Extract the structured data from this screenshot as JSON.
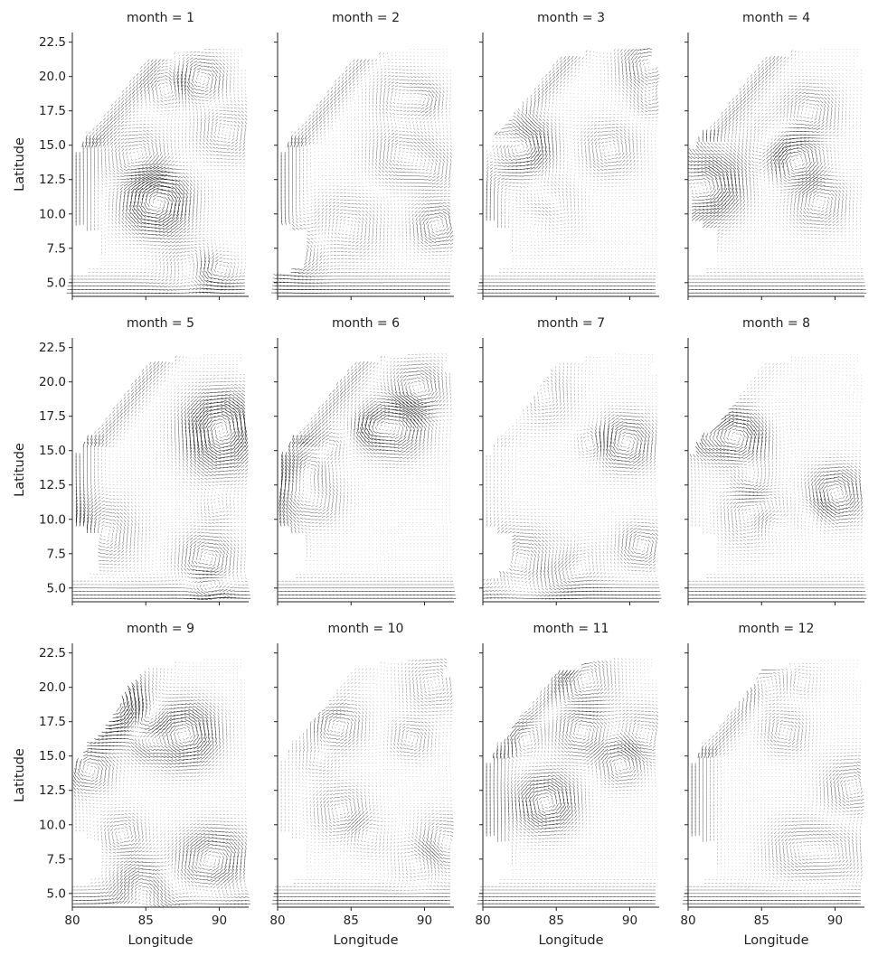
{
  "chart_data": {
    "type": "quiver",
    "layout": "facet-grid 3 rows x 4 columns, shared axes",
    "xlabel": "Longitude",
    "ylabel": "Latitude",
    "xlim": [
      80,
      92
    ],
    "ylim": [
      4,
      23.2
    ],
    "xticks": [
      80,
      85,
      90
    ],
    "xtick_labels": [
      "80",
      "85",
      "90"
    ],
    "yticks": [
      5.0,
      7.5,
      10.0,
      12.5,
      15.0,
      17.5,
      20.0,
      22.5
    ],
    "ytick_labels": [
      "5.0",
      "7.5",
      "10.0",
      "12.5",
      "15.0",
      "17.5",
      "20.0",
      "22.5"
    ],
    "grid": false,
    "arrow_color": "#111111",
    "vector_grid": {
      "lon_start": 80.0,
      "lon_end": 91.75,
      "lat_start": 4.0,
      "lat_end": 22.0,
      "step": 0.25
    },
    "panels": [
      {
        "title": "month = 1",
        "month": 1
      },
      {
        "title": "month = 2",
        "month": 2
      },
      {
        "title": "month = 3",
        "month": 3
      },
      {
        "title": "month = 4",
        "month": 4
      },
      {
        "title": "month = 5",
        "month": 5
      },
      {
        "title": "month = 6",
        "month": 6
      },
      {
        "title": "month = 7",
        "month": 7
      },
      {
        "title": "month = 8",
        "month": 8
      },
      {
        "title": "month = 9",
        "month": 9
      },
      {
        "title": "month = 10",
        "month": 10
      },
      {
        "title": "month = 11",
        "month": 11
      },
      {
        "title": "month = 12",
        "month": 12
      }
    ]
  }
}
